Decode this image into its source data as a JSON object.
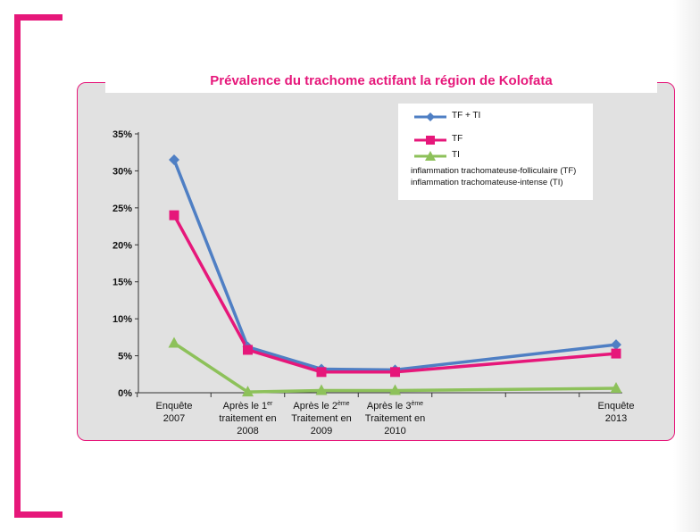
{
  "chart_data": {
    "type": "line",
    "title": "Prévalence du trachome actifant la région de Kolofata",
    "categories": [
      [
        "Enquête",
        "2007"
      ],
      [
        "Après le 1er",
        "traitement en",
        "2008"
      ],
      [
        "Après le 2ème",
        "Traitement en",
        "2009"
      ],
      [
        "Après le 3ème",
        "Traitement en",
        "2010"
      ],
      [
        "Enquête",
        "2013"
      ]
    ],
    "x_positions": [
      0,
      1,
      2,
      3,
      6
    ],
    "ylim": [
      0,
      35
    ],
    "yticks": [
      "0%",
      "5%",
      "10%",
      "15%",
      "20%",
      "25%",
      "30%",
      "35%"
    ],
    "series": [
      {
        "name": "TF + TI",
        "values": [
          31.5,
          6.2,
          3.2,
          3.1,
          6.5
        ],
        "color": "#4f7fc4",
        "marker": "diamond"
      },
      {
        "name": "TF",
        "values": [
          24.0,
          5.8,
          2.8,
          2.8,
          5.3
        ],
        "color": "#e6177a",
        "marker": "square"
      },
      {
        "name": "TI",
        "values": [
          6.7,
          0.1,
          0.3,
          0.3,
          0.6
        ],
        "color": "#8dc15a",
        "marker": "triangle"
      }
    ],
    "legend_notes": [
      "inflammation trachomateuse-folliculaire (TF)",
      "inflammation trachomateuse-intense (TI)"
    ],
    "legend_position": "top-right",
    "grid": false
  }
}
